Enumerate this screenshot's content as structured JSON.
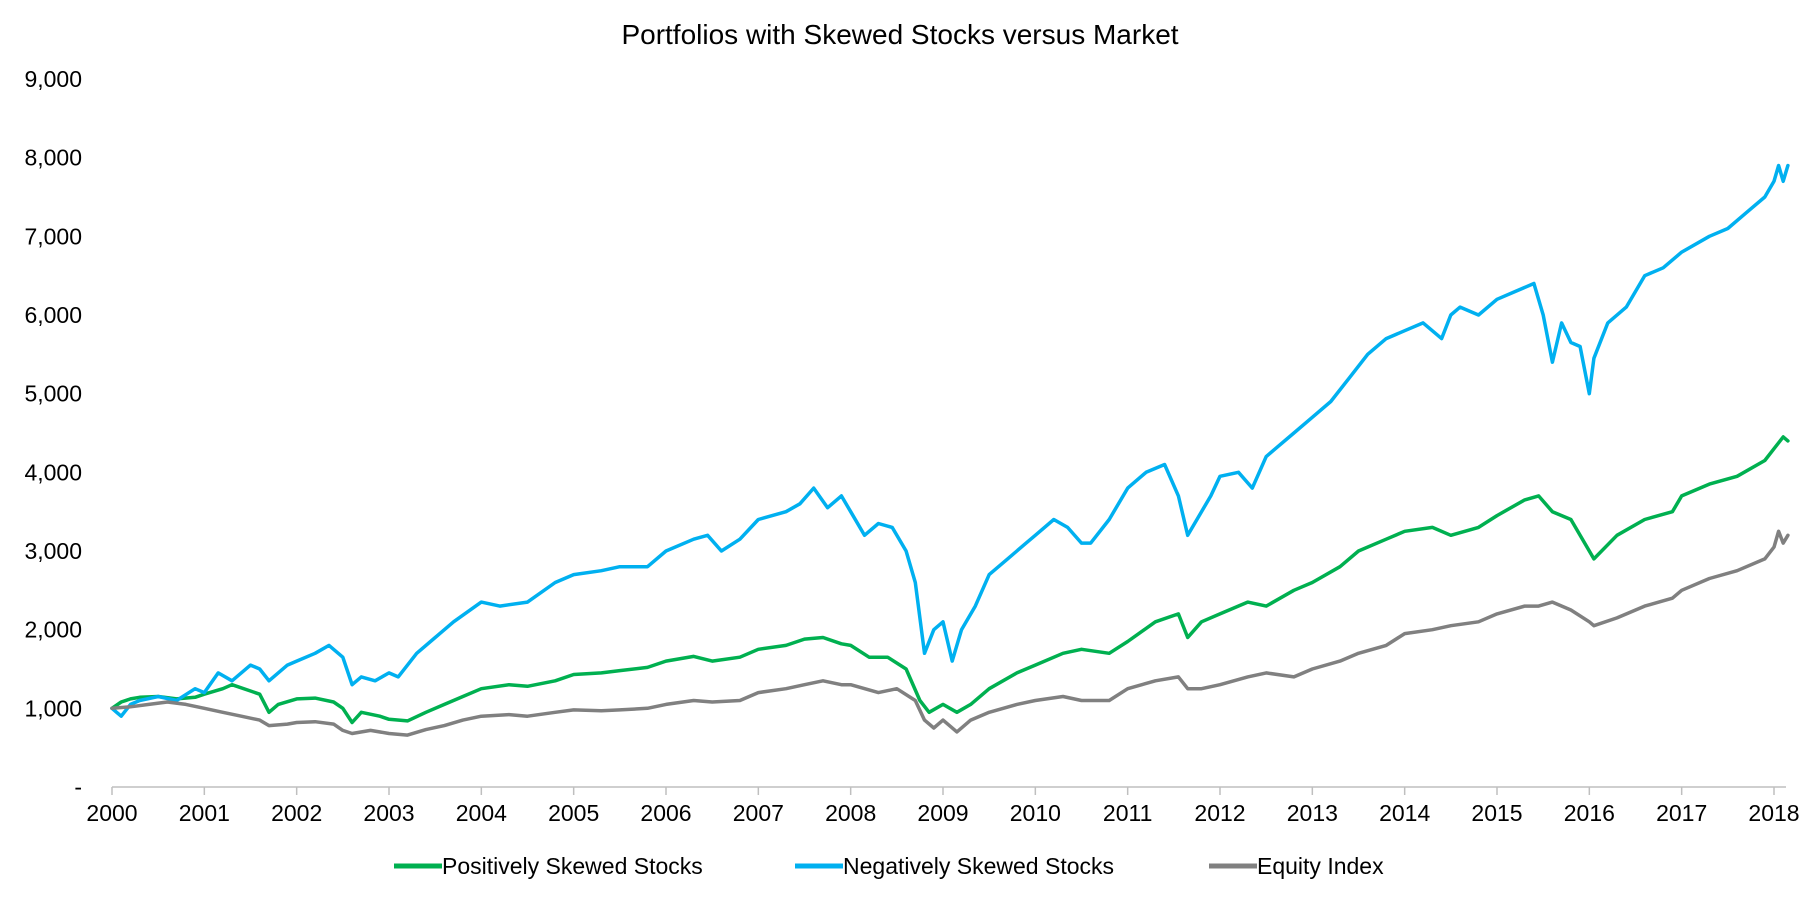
{
  "chart_data": {
    "type": "line",
    "title": "Portfolios with Skewed Stocks versus Market",
    "xlabel": "",
    "ylabel": "",
    "xlim": [
      2000,
      2018.2
    ],
    "ylim": [
      0,
      9000
    ],
    "y_ticks": [
      {
        "value": 0,
        "label": "-"
      },
      {
        "value": 1000,
        "label": "1,000"
      },
      {
        "value": 2000,
        "label": "2,000"
      },
      {
        "value": 3000,
        "label": "3,000"
      },
      {
        "value": 4000,
        "label": "4,000"
      },
      {
        "value": 5000,
        "label": "5,000"
      },
      {
        "value": 6000,
        "label": "6,000"
      },
      {
        "value": 7000,
        "label": "7,000"
      },
      {
        "value": 8000,
        "label": "8,000"
      },
      {
        "value": 9000,
        "label": "9,000"
      }
    ],
    "x_ticks": [
      "2000",
      "2001",
      "2002",
      "2003",
      "2004",
      "2005",
      "2006",
      "2007",
      "2008",
      "2009",
      "2010",
      "2011",
      "2012",
      "2013",
      "2014",
      "2015",
      "2016",
      "2017",
      "2018"
    ],
    "grid": false,
    "legend_position": "bottom",
    "series": [
      {
        "name": "Positively Skewed Stocks",
        "color": "#00b050",
        "x": [
          2000.0,
          2000.1,
          2000.2,
          2000.3,
          2000.5,
          2000.7,
          2000.9,
          2001.0,
          2001.2,
          2001.3,
          2001.5,
          2001.6,
          2001.7,
          2001.8,
          2002.0,
          2002.2,
          2002.4,
          2002.5,
          2002.6,
          2002.7,
          2002.9,
          2003.0,
          2003.2,
          2003.4,
          2003.6,
          2003.8,
          2004.0,
          2004.3,
          2004.5,
          2004.8,
          2005.0,
          2005.3,
          2005.5,
          2005.8,
          2006.0,
          2006.3,
          2006.5,
          2006.8,
          2007.0,
          2007.3,
          2007.5,
          2007.7,
          2007.9,
          2008.0,
          2008.2,
          2008.4,
          2008.6,
          2008.75,
          2008.85,
          2009.0,
          2009.15,
          2009.3,
          2009.5,
          2009.8,
          2010.0,
          2010.3,
          2010.5,
          2010.8,
          2011.0,
          2011.3,
          2011.55,
          2011.65,
          2011.8,
          2012.0,
          2012.3,
          2012.5,
          2012.8,
          2013.0,
          2013.3,
          2013.5,
          2013.8,
          2014.0,
          2014.3,
          2014.5,
          2014.8,
          2015.0,
          2015.3,
          2015.45,
          2015.6,
          2015.8,
          2016.0,
          2016.05,
          2016.3,
          2016.6,
          2016.9,
          2017.0,
          2017.3,
          2017.6,
          2017.9,
          2018.0,
          2018.1,
          2018.15
        ],
        "y": [
          1000,
          1080,
          1120,
          1140,
          1150,
          1120,
          1140,
          1180,
          1250,
          1300,
          1220,
          1180,
          950,
          1050,
          1120,
          1130,
          1080,
          1000,
          820,
          950,
          900,
          860,
          840,
          950,
          1050,
          1150,
          1250,
          1300,
          1280,
          1350,
          1430,
          1450,
          1480,
          1520,
          1600,
          1660,
          1600,
          1650,
          1750,
          1800,
          1880,
          1900,
          1820,
          1800,
          1650,
          1650,
          1500,
          1100,
          950,
          1050,
          950,
          1050,
          1250,
          1450,
          1550,
          1700,
          1750,
          1700,
          1850,
          2100,
          2200,
          1900,
          2100,
          2200,
          2350,
          2300,
          2500,
          2600,
          2800,
          3000,
          3150,
          3250,
          3300,
          3200,
          3300,
          3450,
          3650,
          3700,
          3500,
          3400,
          3000,
          2900,
          3200,
          3400,
          3500,
          3700,
          3850,
          3950,
          4150,
          4300,
          4450,
          4400
        ]
      },
      {
        "name": "Negatively Skewed Stocks",
        "color": "#00b0f0",
        "x": [
          2000.0,
          2000.05,
          2000.1,
          2000.2,
          2000.3,
          2000.5,
          2000.7,
          2000.9,
          2001.0,
          2001.15,
          2001.3,
          2001.5,
          2001.6,
          2001.7,
          2001.9,
          2002.0,
          2002.2,
          2002.35,
          2002.5,
          2002.6,
          2002.7,
          2002.85,
          2003.0,
          2003.1,
          2003.3,
          2003.5,
          2003.7,
          2004.0,
          2004.2,
          2004.5,
          2004.8,
          2005.0,
          2005.3,
          2005.5,
          2005.8,
          2006.0,
          2006.3,
          2006.45,
          2006.6,
          2006.8,
          2007.0,
          2007.3,
          2007.45,
          2007.6,
          2007.75,
          2007.9,
          2008.0,
          2008.15,
          2008.3,
          2008.45,
          2008.6,
          2008.7,
          2008.8,
          2008.9,
          2009.0,
          2009.1,
          2009.2,
          2009.35,
          2009.5,
          2009.7,
          2009.9,
          2010.0,
          2010.2,
          2010.35,
          2010.5,
          2010.6,
          2010.8,
          2011.0,
          2011.2,
          2011.4,
          2011.55,
          2011.65,
          2011.8,
          2011.9,
          2012.0,
          2012.2,
          2012.35,
          2012.5,
          2012.6,
          2012.8,
          2013.0,
          2013.2,
          2013.4,
          2013.6,
          2013.8,
          2014.0,
          2014.2,
          2014.4,
          2014.5,
          2014.6,
          2014.8,
          2015.0,
          2015.2,
          2015.4,
          2015.5,
          2015.6,
          2015.7,
          2015.8,
          2015.9,
          2016.0,
          2016.05,
          2016.2,
          2016.4,
          2016.6,
          2016.8,
          2017.0,
          2017.3,
          2017.5,
          2017.7,
          2017.9,
          2018.0,
          2018.05,
          2018.1,
          2018.15
        ],
        "y": [
          1000,
          950,
          900,
          1050,
          1100,
          1150,
          1100,
          1250,
          1200,
          1450,
          1350,
          1550,
          1500,
          1350,
          1550,
          1600,
          1700,
          1800,
          1650,
          1300,
          1400,
          1350,
          1450,
          1400,
          1700,
          1900,
          2100,
          2350,
          2300,
          2350,
          2600,
          2700,
          2750,
          2800,
          2800,
          3000,
          3150,
          3200,
          3000,
          3150,
          3400,
          3500,
          3600,
          3800,
          3550,
          3700,
          3500,
          3200,
          3350,
          3300,
          3000,
          2600,
          1700,
          2000,
          2100,
          1600,
          2000,
          2300,
          2700,
          2900,
          3100,
          3200,
          3400,
          3300,
          3100,
          3100,
          3400,
          3800,
          4000,
          4100,
          3700,
          3200,
          3500,
          3700,
          3950,
          4000,
          3800,
          4200,
          4300,
          4500,
          4700,
          4900,
          5200,
          5500,
          5700,
          5800,
          5900,
          5700,
          6000,
          6100,
          6000,
          6200,
          6300,
          6400,
          6000,
          5400,
          5900,
          5650,
          5600,
          5000,
          5450,
          5900,
          6100,
          6500,
          6600,
          6800,
          7000,
          7100,
          7300,
          7500,
          7700,
          7900,
          7700,
          7900
        ]
      },
      {
        "name": "Equity Index",
        "color": "#808080",
        "x": [
          2000.0,
          2000.2,
          2000.4,
          2000.6,
          2000.8,
          2001.0,
          2001.2,
          2001.4,
          2001.6,
          2001.7,
          2001.9,
          2002.0,
          2002.2,
          2002.4,
          2002.5,
          2002.6,
          2002.8,
          2003.0,
          2003.2,
          2003.4,
          2003.6,
          2003.8,
          2004.0,
          2004.3,
          2004.5,
          2004.8,
          2005.0,
          2005.3,
          2005.5,
          2005.8,
          2006.0,
          2006.3,
          2006.5,
          2006.8,
          2007.0,
          2007.3,
          2007.5,
          2007.7,
          2007.9,
          2008.0,
          2008.3,
          2008.5,
          2008.7,
          2008.8,
          2008.9,
          2009.0,
          2009.15,
          2009.3,
          2009.5,
          2009.8,
          2010.0,
          2010.3,
          2010.5,
          2010.8,
          2011.0,
          2011.3,
          2011.55,
          2011.65,
          2011.8,
          2012.0,
          2012.3,
          2012.5,
          2012.8,
          2013.0,
          2013.3,
          2013.5,
          2013.8,
          2014.0,
          2014.3,
          2014.5,
          2014.8,
          2015.0,
          2015.3,
          2015.45,
          2015.6,
          2015.8,
          2016.0,
          2016.05,
          2016.3,
          2016.6,
          2016.9,
          2017.0,
          2017.3,
          2017.6,
          2017.9,
          2018.0,
          2018.05,
          2018.1,
          2018.15
        ],
        "y": [
          1000,
          1020,
          1050,
          1080,
          1050,
          1000,
          950,
          900,
          850,
          780,
          800,
          820,
          830,
          800,
          720,
          680,
          720,
          680,
          660,
          730,
          780,
          850,
          900,
          920,
          900,
          950,
          980,
          970,
          980,
          1000,
          1050,
          1100,
          1080,
          1100,
          1200,
          1250,
          1300,
          1350,
          1300,
          1300,
          1200,
          1250,
          1100,
          850,
          750,
          850,
          700,
          850,
          950,
          1050,
          1100,
          1150,
          1100,
          1100,
          1250,
          1350,
          1400,
          1250,
          1250,
          1300,
          1400,
          1450,
          1400,
          1500,
          1600,
          1700,
          1800,
          1950,
          2000,
          2050,
          2100,
          2200,
          2300,
          2300,
          2350,
          2250,
          2100,
          2050,
          2150,
          2300,
          2400,
          2500,
          2650,
          2750,
          2900,
          3050,
          3250,
          3100,
          3200
        ]
      }
    ]
  }
}
